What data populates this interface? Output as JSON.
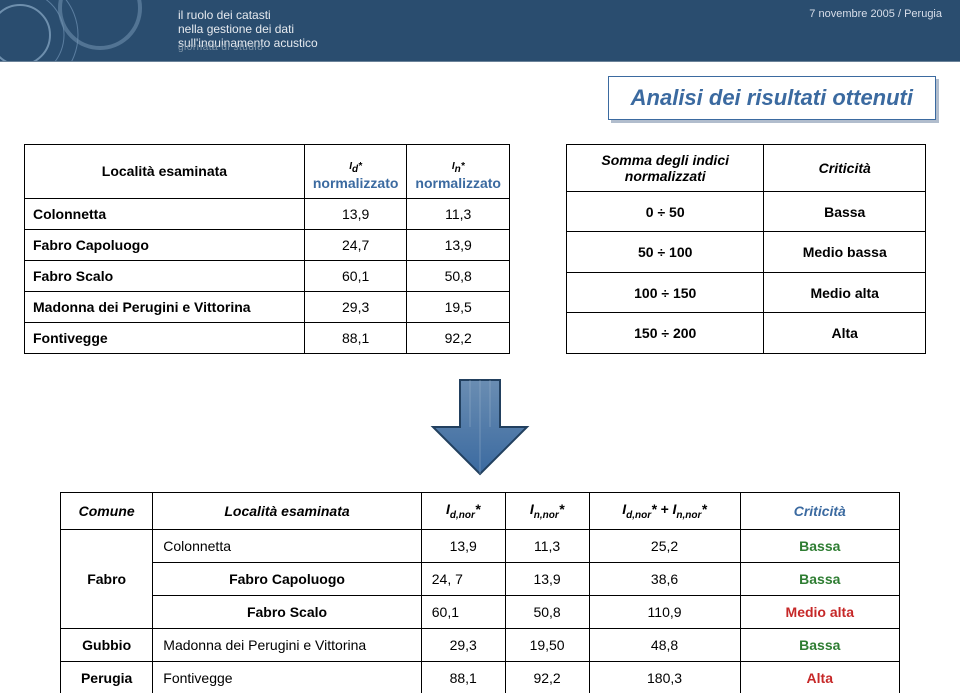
{
  "banner": {
    "line1": "il ruolo dei catasti",
    "line2": "nella gestione dei dati",
    "line3": "sull'inquinamento acustico",
    "subtag": "giornata di studio",
    "date": "7 novembre 2005 / Perugia"
  },
  "title": "Analisi dei risultati ottenuti",
  "accent": "#3b6aa0",
  "table1": {
    "head_loc": "Località esaminata",
    "head_id_sym": "I",
    "head_id_sub": "d",
    "head_star": "*",
    "head_in_sym": "I",
    "head_in_sub": "n",
    "head_norm": "normalizzato",
    "rows": [
      {
        "loc": "Colonnetta",
        "id": "13,9",
        "in": "11,3"
      },
      {
        "loc": "Fabro Capoluogo",
        "id": "24,7",
        "in": "13,9"
      },
      {
        "loc": "Fabro Scalo",
        "id": "60,1",
        "in": "50,8"
      },
      {
        "loc": "Madonna dei Perugini e Vittorina",
        "id": "29,3",
        "in": "19,5"
      },
      {
        "loc": "Fontivegge",
        "id": "88,1",
        "in": "92,2"
      }
    ]
  },
  "table2": {
    "head1a": "Somma degli indici",
    "head1b": "normalizzati",
    "head2": "Criticità",
    "rows": [
      {
        "r": "0 ÷ 50",
        "c": "Bassa"
      },
      {
        "r": "50 ÷ 100",
        "c": "Medio bassa"
      },
      {
        "r": "100 ÷ 150",
        "c": "Medio alta"
      },
      {
        "r": "150 ÷ 200",
        "c": "Alta"
      }
    ]
  },
  "arrow": {
    "fill_top": "#6a8db2",
    "fill_bottom": "#3b6aa0",
    "stroke": "#22405f"
  },
  "table3": {
    "head_comune": "Comune",
    "head_loc": "Località esaminata",
    "head_idnor_I": "I",
    "head_idnor_sub": "d,nor",
    "head_star": "*",
    "head_innor_I": "I",
    "head_innor_sub": "n,nor",
    "head_sum_a_I": "I",
    "head_sum_a_sub": "d,nor",
    "head_sum_plus": " + ",
    "head_sum_b_I": "I",
    "head_sum_b_sub": "n,nor",
    "head_crit": "Criticità",
    "comune_fabro": "Fabro",
    "comune_gubbio": "Gubbio",
    "comune_perugia": "Perugia",
    "rows": [
      {
        "loc": "Colonnetta",
        "id": "13,9",
        "in": "11,3",
        "sum": "25,2",
        "crit": "Bassa",
        "critColor": "#2e7d32"
      },
      {
        "loc": "Fabro Capoluogo",
        "id": "24, 7",
        "in": "13,9",
        "sum": "38,6",
        "crit": "Bassa",
        "critColor": "#2e7d32"
      },
      {
        "loc": "Fabro Scalo",
        "id": "60,1",
        "in": "50,8",
        "sum": "110,9",
        "crit": "Medio alta",
        "critColor": "#c62828"
      },
      {
        "loc": "Madonna dei Perugini e Vittorina",
        "id": "29,3",
        "in": "19,50",
        "sum": "48,8",
        "crit": "Bassa",
        "critColor": "#2e7d32"
      },
      {
        "loc": "Fontivegge",
        "id": "88,1",
        "in": "92,2",
        "sum": "180,3",
        "crit": "Alta",
        "critColor": "#c62828"
      }
    ]
  }
}
